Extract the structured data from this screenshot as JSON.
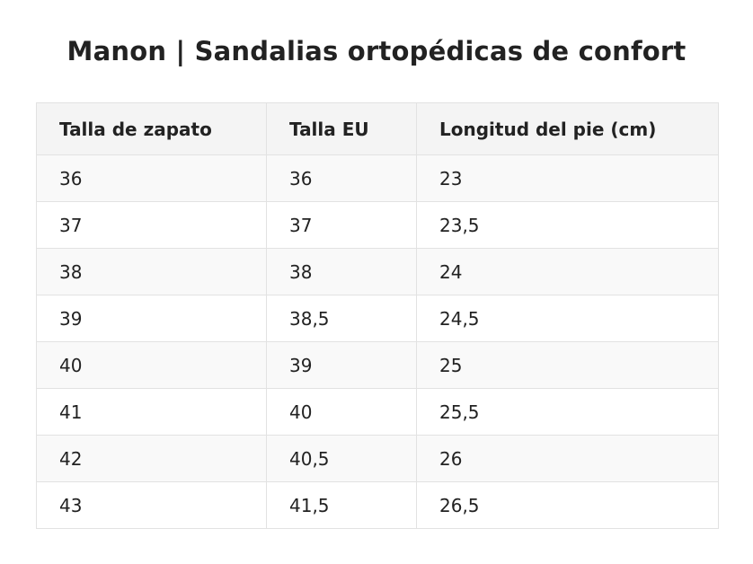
{
  "title": "Manon | Sandalias ortopédicas de confort",
  "table": {
    "headers": [
      "Talla de zapato",
      "Talla EU",
      "Longitud del pie (cm)"
    ],
    "rows": [
      [
        "36",
        "36",
        "23"
      ],
      [
        "37",
        "37",
        "23,5"
      ],
      [
        "38",
        "38",
        "24"
      ],
      [
        "39",
        "38,5",
        "24,5"
      ],
      [
        "40",
        "39",
        "25"
      ],
      [
        "41",
        "40",
        "25,5"
      ],
      [
        "42",
        "40,5",
        "26"
      ],
      [
        "43",
        "41,5",
        "26,5"
      ]
    ]
  }
}
